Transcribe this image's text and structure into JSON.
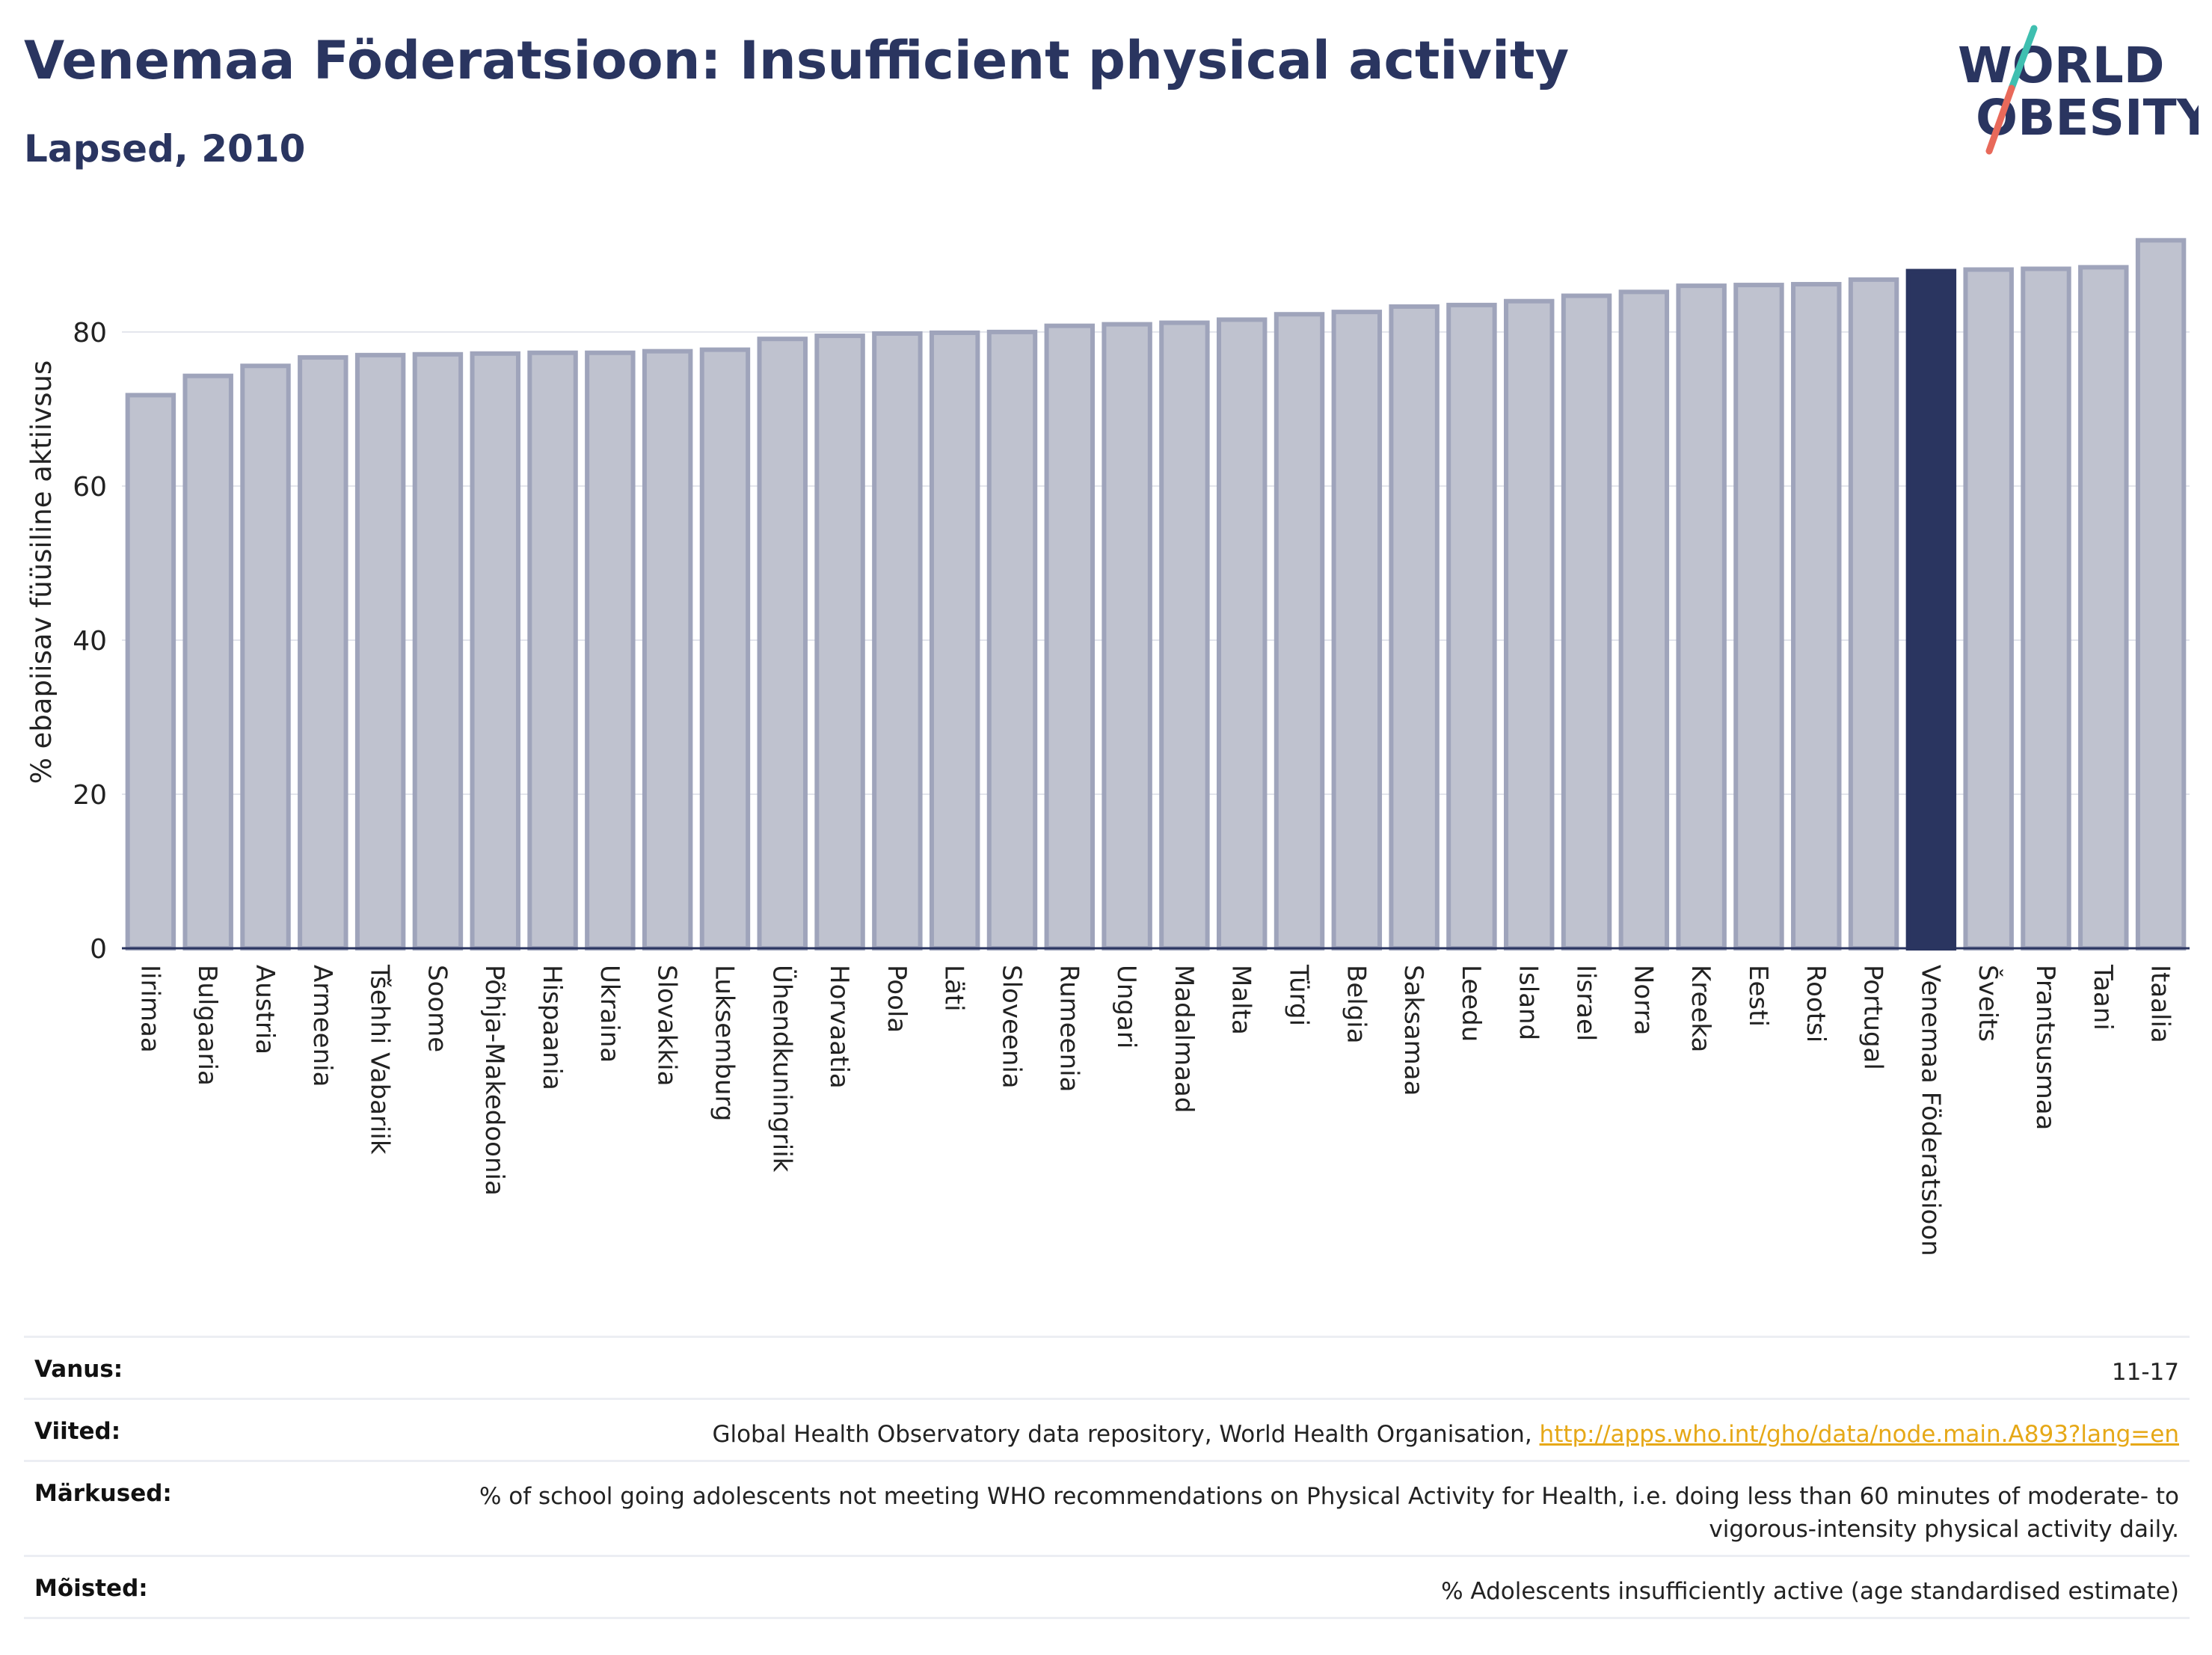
{
  "header": {
    "title": "Venemaa Föderatsioon: Insufficient physical activity",
    "subtitle": "Lapsed, 2010"
  },
  "logo": {
    "line1": "WORLD",
    "line2": "OBESITY"
  },
  "colors": {
    "bar": "#bfc2cf",
    "bar_border": "#9fa4bb",
    "highlight": "#2a3560",
    "text": "#2a3560",
    "link": "#e6a817"
  },
  "chart_data": {
    "type": "bar",
    "ylabel": "% ebapiisav füüsiline aktiivsus",
    "ylim": [
      0,
      93
    ],
    "yticks": [
      0,
      20,
      40,
      60,
      80
    ],
    "grid": true,
    "highlight": "Venemaa Föderatsioon",
    "categories": [
      "Iirimaa",
      "Bulgaaria",
      "Austria",
      "Armeenia",
      "Tšehhi Vabariik",
      "Soome",
      "Põhja-Makedoonia",
      "Hispaania",
      "Ukraina",
      "Slovakkia",
      "Luksemburg",
      "Ühendkuningriik",
      "Horvaatia",
      "Poola",
      "Läti",
      "Sloveenia",
      "Rumeenia",
      "Ungari",
      "Madalmaad",
      "Malta",
      "Türgi",
      "Belgia",
      "Saksamaa",
      "Leedu",
      "Island",
      "Iisrael",
      "Norra",
      "Kreeka",
      "Eesti",
      "Rootsi",
      "Portugal",
      "Venemaa Föderatsioon",
      "Šveits",
      "Prantsusmaa",
      "Taani",
      "Itaalia"
    ],
    "values": [
      71.8,
      74.3,
      75.6,
      76.7,
      77.0,
      77.1,
      77.2,
      77.3,
      77.3,
      77.5,
      77.7,
      79.1,
      79.5,
      79.8,
      79.9,
      80.0,
      80.8,
      81.0,
      81.2,
      81.6,
      82.3,
      82.6,
      83.3,
      83.5,
      84.0,
      84.7,
      85.2,
      86.0,
      86.1,
      86.2,
      86.8,
      87.9,
      88.1,
      88.2,
      88.4,
      91.9
    ]
  },
  "meta": [
    {
      "label": "Vanus:",
      "value": "11-17"
    },
    {
      "label": "Viited:",
      "value": "Global Health Observatory data repository, World Health Organisation, ",
      "link": "http://apps.who.int/gho/data/node.main.A893?lang=en"
    },
    {
      "label": "Märkused:",
      "value": "% of school going adolescents not meeting WHO recommendations on Physical Activity for Health, i.e. doing less than 60 minutes of moderate- to vigorous-intensity physical activity daily."
    },
    {
      "label": "Mõisted:",
      "value": "% Adolescents insufficiently active (age standardised estimate)"
    }
  ]
}
